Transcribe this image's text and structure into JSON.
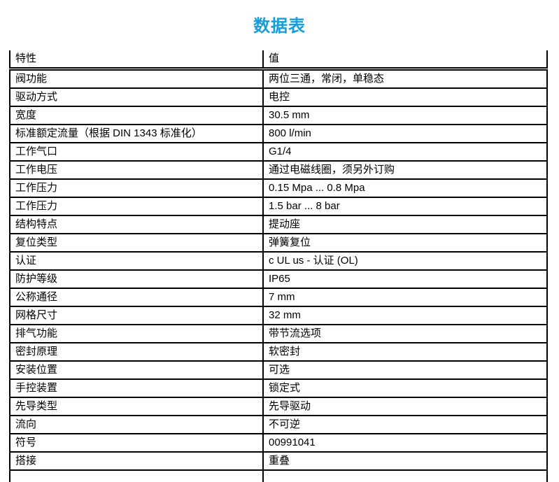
{
  "page": {
    "title": "数据表"
  },
  "theme": {
    "title_color": "#189CDB",
    "border_color": "#000000",
    "text_color": "#000000"
  },
  "table": {
    "headers": {
      "property": "特性",
      "value": "值"
    },
    "rows": [
      {
        "property": "阀功能",
        "value": "两位三通，常闭，单稳态"
      },
      {
        "property": "驱动方式",
        "value": "电控"
      },
      {
        "property": "宽度",
        "value": "30.5 mm"
      },
      {
        "property": "标准额定流量（根据 DIN 1343 标准化）",
        "value": "800 l/min"
      },
      {
        "property": "工作气口",
        "value": "G1/4"
      },
      {
        "property": "工作电压",
        "value": "通过电磁线圈，须另外订购"
      },
      {
        "property": "工作压力",
        "value": "0.15 Mpa ... 0.8 Mpa"
      },
      {
        "property": "工作压力",
        "value": "1.5 bar ... 8 bar"
      },
      {
        "property": "结构特点",
        "value": "提动座"
      },
      {
        "property": "复位类型",
        "value": "弹簧复位"
      },
      {
        "property": "认证",
        "value": "c UL us - 认证 (OL)"
      },
      {
        "property": "防护等级",
        "value": "IP65"
      },
      {
        "property": "公称通径",
        "value": "7 mm"
      },
      {
        "property": "网格尺寸",
        "value": "32 mm"
      },
      {
        "property": "排气功能",
        "value": "带节流选项"
      },
      {
        "property": "密封原理",
        "value": "软密封"
      },
      {
        "property": "安装位置",
        "value": "可选"
      },
      {
        "property": "手控装置",
        "value": "锁定式"
      },
      {
        "property": "先导类型",
        "value": "先导驱动"
      },
      {
        "property": "流向",
        "value": "不可逆"
      },
      {
        "property": "符号",
        "value": "00991041"
      },
      {
        "property": "搭接",
        "value": "重叠"
      }
    ]
  }
}
